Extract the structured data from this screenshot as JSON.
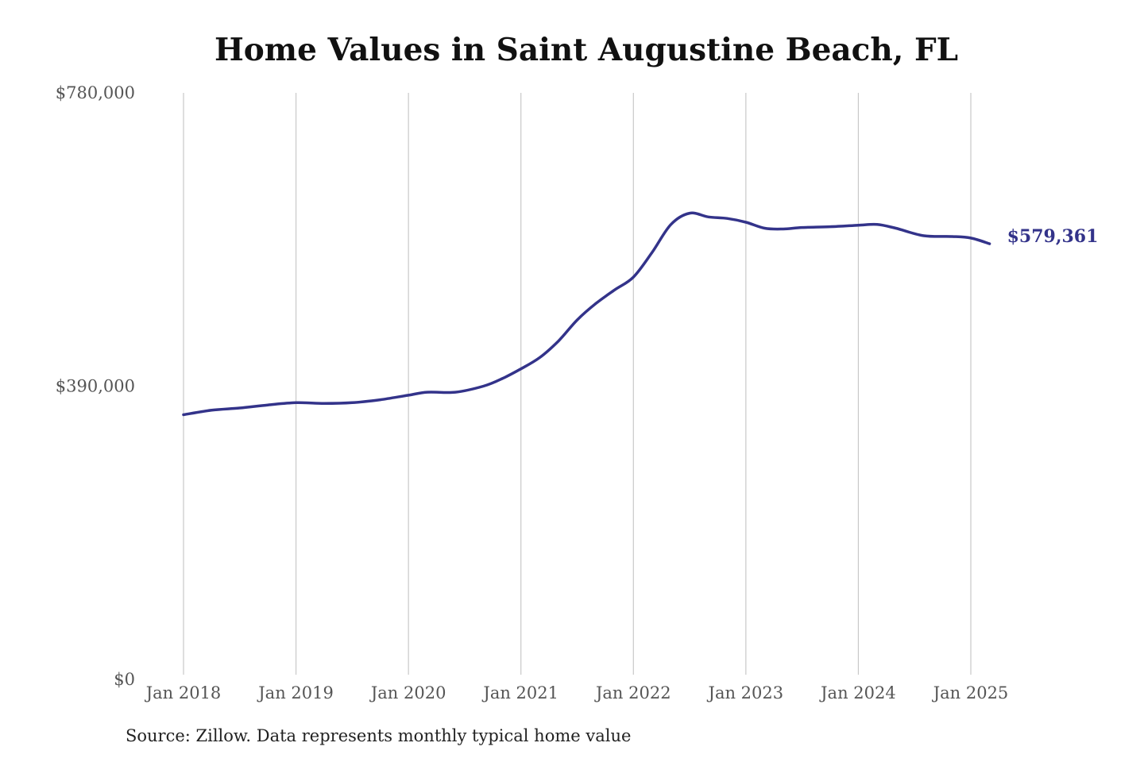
{
  "chart_data": {
    "type": "line",
    "title": "Home Values in Saint Augustine Beach, FL",
    "source_note": "Source: Zillow. Data represents monthly typical home value",
    "xlabel": "",
    "ylabel": "",
    "ylim": [
      0,
      780000
    ],
    "xlim": [
      "2018-01",
      "2025-03"
    ],
    "grid": {
      "vertical": true,
      "horizontal": false
    },
    "line_color": "#33338a",
    "grid_color": "#c8c8c8",
    "y_ticks": [
      {
        "value": 0,
        "label": "$0"
      },
      {
        "value": 390000,
        "label": "$390,000"
      },
      {
        "value": 780000,
        "label": "$780,000"
      }
    ],
    "x_ticks": [
      {
        "date": "2018-01",
        "label": "Jan 2018"
      },
      {
        "date": "2019-01",
        "label": "Jan 2019"
      },
      {
        "date": "2020-01",
        "label": "Jan 2020"
      },
      {
        "date": "2021-01",
        "label": "Jan 2021"
      },
      {
        "date": "2022-01",
        "label": "Jan 2022"
      },
      {
        "date": "2023-01",
        "label": "Jan 2023"
      },
      {
        "date": "2024-01",
        "label": "Jan 2024"
      },
      {
        "date": "2025-01",
        "label": "Jan 2025"
      }
    ],
    "end_label": "$579,361",
    "series": [
      {
        "values": [
          {
            "date": "2018-01",
            "value": 352000
          },
          {
            "date": "2018-04",
            "value": 358000
          },
          {
            "date": "2018-07",
            "value": 361000
          },
          {
            "date": "2018-10",
            "value": 365000
          },
          {
            "date": "2019-01",
            "value": 368000
          },
          {
            "date": "2019-04",
            "value": 367000
          },
          {
            "date": "2019-07",
            "value": 368000
          },
          {
            "date": "2019-10",
            "value": 372000
          },
          {
            "date": "2020-01",
            "value": 378000
          },
          {
            "date": "2020-03",
            "value": 382000
          },
          {
            "date": "2020-06",
            "value": 382000
          },
          {
            "date": "2020-09",
            "value": 390000
          },
          {
            "date": "2020-11",
            "value": 400000
          },
          {
            "date": "2021-01",
            "value": 413000
          },
          {
            "date": "2021-03",
            "value": 428000
          },
          {
            "date": "2021-05",
            "value": 450000
          },
          {
            "date": "2021-07",
            "value": 478000
          },
          {
            "date": "2021-09",
            "value": 500000
          },
          {
            "date": "2021-11",
            "value": 518000
          },
          {
            "date": "2022-01",
            "value": 535000
          },
          {
            "date": "2022-03",
            "value": 568000
          },
          {
            "date": "2022-05",
            "value": 605000
          },
          {
            "date": "2022-07",
            "value": 620000
          },
          {
            "date": "2022-09",
            "value": 615000
          },
          {
            "date": "2022-11",
            "value": 613000
          },
          {
            "date": "2023-01",
            "value": 608000
          },
          {
            "date": "2023-03",
            "value": 600000
          },
          {
            "date": "2023-05",
            "value": 599000
          },
          {
            "date": "2023-07",
            "value": 601000
          },
          {
            "date": "2023-10",
            "value": 602000
          },
          {
            "date": "2024-01",
            "value": 604000
          },
          {
            "date": "2024-03",
            "value": 605000
          },
          {
            "date": "2024-05",
            "value": 600000
          },
          {
            "date": "2024-08",
            "value": 590000
          },
          {
            "date": "2024-11",
            "value": 589000
          },
          {
            "date": "2025-01",
            "value": 587000
          },
          {
            "date": "2025-03",
            "value": 579361
          }
        ]
      }
    ]
  }
}
